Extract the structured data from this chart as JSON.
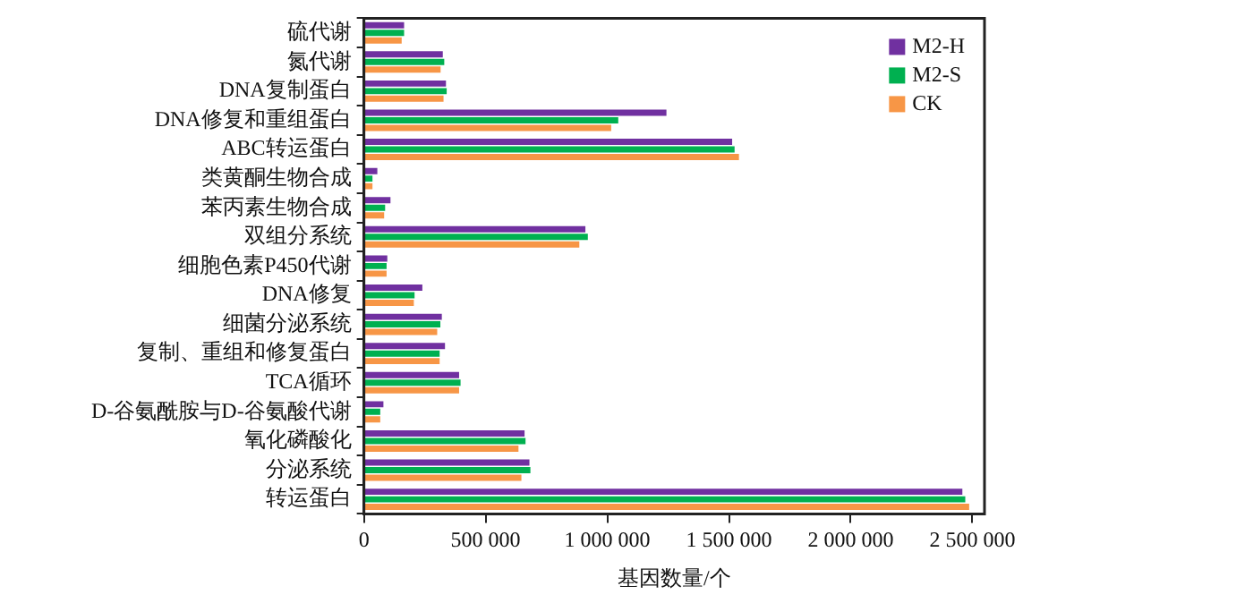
{
  "chart_data": {
    "type": "bar",
    "orientation": "horizontal",
    "xlabel": "基因数量/个",
    "categories": [
      "硫代谢",
      "氮代谢",
      "DNA复制蛋白",
      "DNA修复和重组蛋白",
      "ABC转运蛋白",
      "类黄酮生物合成",
      "苯丙素生物合成",
      "双组分系统",
      "细胞色素P450代谢",
      "DNA修复",
      "细菌分泌系统",
      "复制、重组和修复蛋白",
      "TCA循环",
      "D-谷氨酰胺与D-谷氨酸代谢",
      "氧化磷酸化",
      "分泌系统",
      "转运蛋白"
    ],
    "series": [
      {
        "name": "M2-H",
        "color": "#7030a0",
        "values": [
          165000,
          324000,
          337000,
          1243000,
          1513000,
          55000,
          109000,
          910000,
          96000,
          240000,
          320000,
          333000,
          391000,
          80000,
          660000,
          680000,
          2459000
        ]
      },
      {
        "name": "M2-S",
        "color": "#00b050",
        "values": [
          165000,
          330000,
          340000,
          1045000,
          1523000,
          35000,
          87000,
          920000,
          93000,
          208000,
          314000,
          311000,
          397000,
          67000,
          664000,
          684000,
          2471000
        ]
      },
      {
        "name": "CK",
        "color": "#f79646",
        "values": [
          155000,
          315000,
          327000,
          1016000,
          1541000,
          35000,
          83000,
          885000,
          93000,
          205000,
          301000,
          311000,
          391000,
          67000,
          635000,
          647000,
          2487000
        ]
      }
    ],
    "xlim": [
      0,
      2550000
    ],
    "xticks": [
      0,
      {
        "value": 500000,
        "label": "500 000"
      },
      {
        "value": 1000000,
        "label": "1 000 000"
      },
      {
        "value": 1500000,
        "label": "1 500 000"
      },
      {
        "value": 2000000,
        "label": "2 000 000"
      },
      {
        "value": 2500000,
        "label": "2 500 000"
      }
    ],
    "grid": false,
    "legend": "top right"
  }
}
